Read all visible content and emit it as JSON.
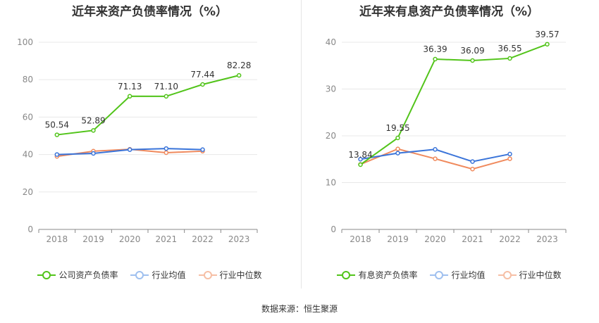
{
  "colors": {
    "company": "#52c41a",
    "avg": "#3a74d9",
    "median": "#f08a5d"
  },
  "source": "数据来源：恒生聚源",
  "chart_data": [
    {
      "type": "line",
      "title": "近年来资产负债率情况（%）",
      "categories": [
        "2018",
        "2019",
        "2020",
        "2021",
        "2022",
        "2023"
      ],
      "ylim": [
        0,
        100
      ],
      "yticks": [
        0,
        20,
        40,
        60,
        80,
        100
      ],
      "grid": true,
      "legend_position": "bottom",
      "series": [
        {
          "name": "公司资产负债率",
          "key": "company",
          "values": [
            50.54,
            52.89,
            71.13,
            71.1,
            77.44,
            82.28
          ],
          "labels": [
            "50.54",
            "52.89",
            "71.13",
            "71.10",
            "77.44",
            "82.28"
          ]
        },
        {
          "name": "行业均值",
          "key": "avg",
          "values": [
            40.0,
            40.6,
            42.6,
            43.2,
            42.6,
            null
          ]
        },
        {
          "name": "行业中位数",
          "key": "median",
          "values": [
            39.0,
            41.8,
            42.8,
            41.0,
            41.8,
            null
          ]
        }
      ]
    },
    {
      "type": "line",
      "title": "近年来有息资产负债率情况（%）",
      "categories": [
        "2018",
        "2019",
        "2020",
        "2021",
        "2022",
        "2023"
      ],
      "ylim": [
        0,
        40
      ],
      "yticks": [
        0,
        10,
        20,
        30,
        40
      ],
      "grid": true,
      "legend_position": "bottom",
      "series": [
        {
          "name": "有息资产负债率",
          "key": "company",
          "values": [
            13.84,
            19.55,
            36.39,
            36.09,
            36.55,
            39.57
          ],
          "labels": [
            "13.84",
            "19.55",
            "36.39",
            "36.09",
            "36.55",
            "39.57"
          ]
        },
        {
          "name": "行业均值",
          "key": "avg",
          "values": [
            15.0,
            16.3,
            17.1,
            14.5,
            16.1,
            null
          ]
        },
        {
          "name": "行业中位数",
          "key": "median",
          "values": [
            13.9,
            17.2,
            15.1,
            12.9,
            15.1,
            null
          ]
        }
      ]
    }
  ]
}
